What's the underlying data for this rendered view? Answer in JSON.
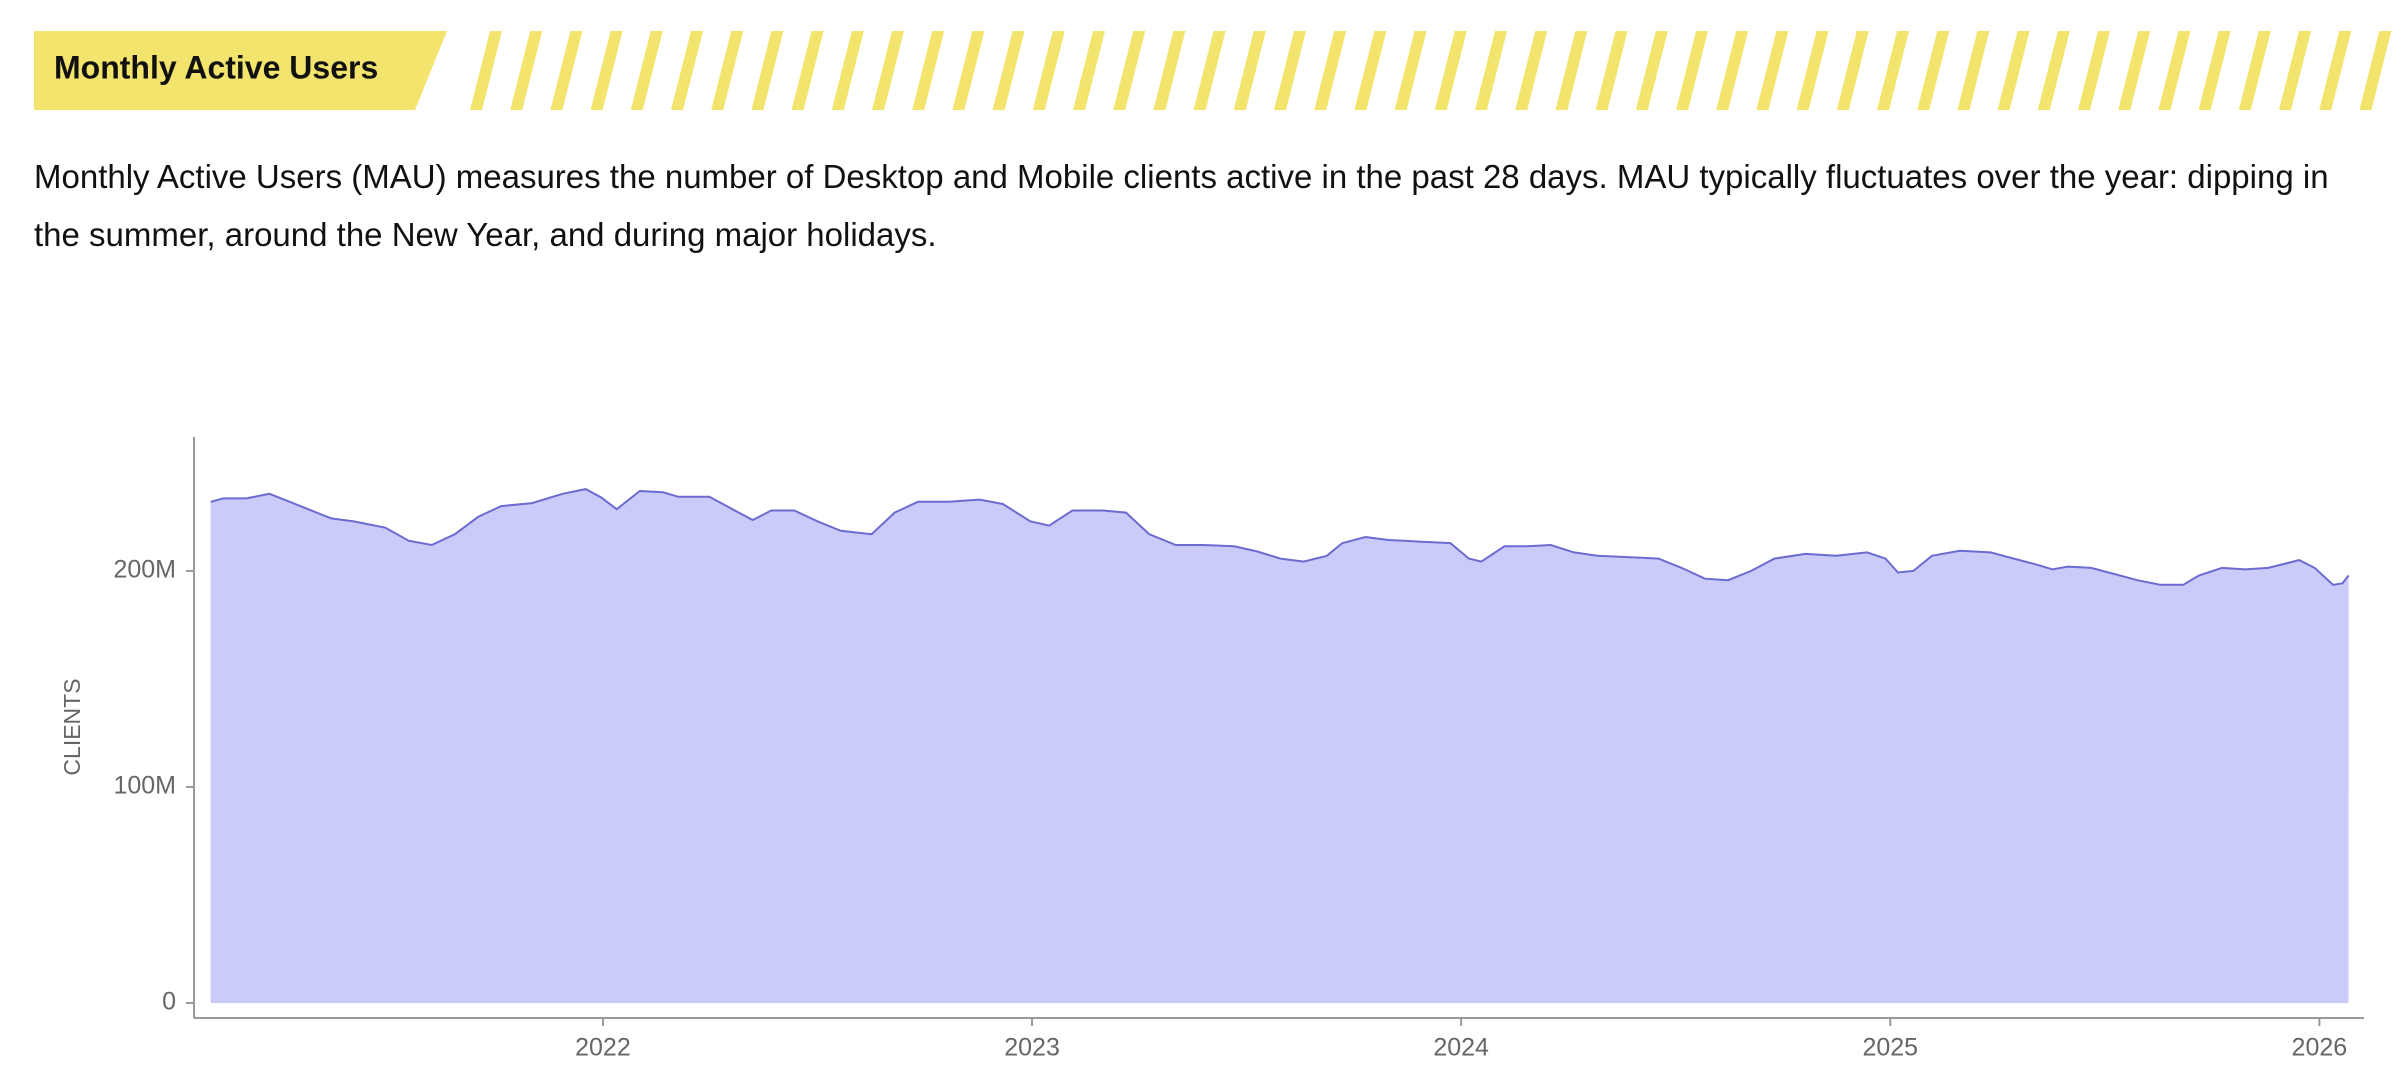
{
  "header": {
    "title": "Monthly Active Users"
  },
  "description": "Monthly Active Users (MAU) measures the number of Desktop and Mobile clients active in the past 28 days. MAU typically fluctuates over the year: dipping in the summer, around the New Year, and during major holidays.",
  "chart_data": {
    "type": "area",
    "y_label": "CLIENTS",
    "color": "#cbcbfa",
    "line_color": "#6b6bd0",
    "x": [
      2021.086,
      2021.115,
      2021.169,
      2021.223,
      2021.259,
      2021.313,
      2021.367,
      2021.421,
      2021.493,
      2021.547,
      2021.601,
      2021.655,
      2021.709,
      2021.763,
      2021.835,
      2021.906,
      2021.96,
      2021.996,
      2022.032,
      2022.086,
      2022.14,
      2022.176,
      2022.248,
      2022.302,
      2022.349,
      2022.392,
      2022.446,
      2022.5,
      2022.554,
      2022.626,
      2022.68,
      2022.734,
      2022.806,
      2022.878,
      2022.932,
      2022.996,
      2023.04,
      2023.094,
      2023.165,
      2023.219,
      2023.273,
      2023.335,
      2023.399,
      2023.471,
      2023.525,
      2023.579,
      2023.633,
      2023.687,
      2023.723,
      2023.777,
      2023.831,
      2023.903,
      2023.975,
      2024.018,
      2024.047,
      2024.101,
      2024.155,
      2024.209,
      2024.263,
      2024.317,
      2024.388,
      2024.46,
      2024.514,
      2024.568,
      2024.622,
      2024.676,
      2024.73,
      2024.802,
      2024.874,
      2024.946,
      2024.989,
      2025.018,
      2025.054,
      2025.097,
      2025.162,
      2025.234,
      2025.288,
      2025.342,
      2025.378,
      2025.414,
      2025.468,
      2025.522,
      2025.576,
      2025.629,
      2025.683,
      2025.719,
      2025.773,
      2025.827,
      2025.881,
      2025.953,
      2025.989,
      2026.032,
      2026.054,
      2026.068
    ],
    "values": [
      232000000,
      233600000,
      233600000,
      235700000,
      232900000,
      228600000,
      224300000,
      222900000,
      220000000,
      214000000,
      212000000,
      217000000,
      225000000,
      230000000,
      231400000,
      235700000,
      237900000,
      234000000,
      228600000,
      237000000,
      236400000,
      234300000,
      234300000,
      228600000,
      223600000,
      228000000,
      228000000,
      223000000,
      218600000,
      217000000,
      227000000,
      232000000,
      232000000,
      233000000,
      231000000,
      223000000,
      221000000,
      228000000,
      228000000,
      227000000,
      217000000,
      212000000,
      212000000,
      211400000,
      209000000,
      205700000,
      204300000,
      207000000,
      212900000,
      215700000,
      214300000,
      213600000,
      212900000,
      205700000,
      204300000,
      211400000,
      211400000,
      212000000,
      208600000,
      207000000,
      206400000,
      205700000,
      201400000,
      196400000,
      195700000,
      200000000,
      205700000,
      207900000,
      207000000,
      208600000,
      205700000,
      199300000,
      200000000,
      207000000,
      209300000,
      208600000,
      205700000,
      202900000,
      200700000,
      202000000,
      201400000,
      198600000,
      195700000,
      193600000,
      193600000,
      197900000,
      201400000,
      200700000,
      201400000,
      205000000,
      201400000,
      193600000,
      194300000,
      197900000
    ],
    "xlim": [
      2021.047,
      2026.104
    ],
    "xticks": [
      2022,
      2023,
      2024,
      2025,
      2026
    ],
    "ylim": [
      0,
      262000000
    ],
    "yticks": [
      {
        "value": 0,
        "label": "0"
      },
      {
        "value": 100000000,
        "label": "100M"
      },
      {
        "value": 200000000,
        "label": "200M"
      }
    ]
  }
}
